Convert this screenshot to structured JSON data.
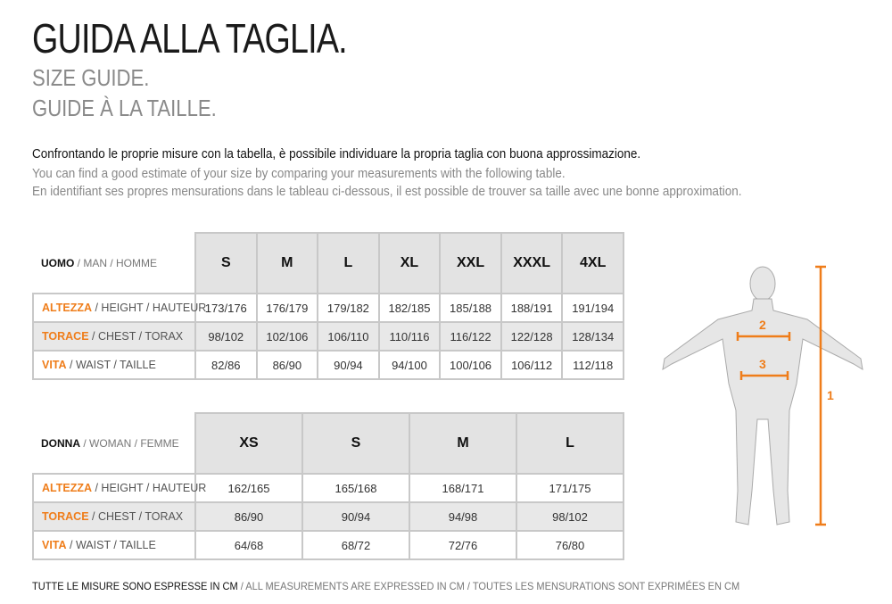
{
  "title": "GUIDA ALLA TAGLIA.",
  "subtitle_en": "SIZE GUIDE.",
  "subtitle_fr": "GUIDE À LA TAILLE.",
  "intro": {
    "it": "Confrontando le proprie misure con la tabella, è possibile individuare la propria taglia con buona approssimazione.",
    "en": "You can find a good estimate of your size by comparing your measurements with the following table.",
    "fr": "En identifiant ses propres mensurations dans le tableau ci-dessous, il est possible de trouver sa taille avec une bonne approximation."
  },
  "men": {
    "label_it": "UOMO",
    "label_rest": " / MAN / HOMME",
    "sizes": [
      "S",
      "M",
      "L",
      "XL",
      "XXL",
      "XXXL",
      "4XL"
    ],
    "rows": [
      {
        "it": "ALTEZZA",
        "rest": " / HEIGHT / HAUTEUR",
        "values": [
          "173/176",
          "176/179",
          "179/182",
          "182/185",
          "185/188",
          "188/191",
          "191/194"
        ]
      },
      {
        "it": "TORACE",
        "rest": " / CHEST / TORAX",
        "values": [
          "98/102",
          "102/106",
          "106/110",
          "110/116",
          "116/122",
          "122/128",
          "128/134"
        ]
      },
      {
        "it": "VITA",
        "rest": " / WAIST / TAILLE",
        "values": [
          "82/86",
          "86/90",
          "90/94",
          "94/100",
          "100/106",
          "106/112",
          "112/118"
        ]
      }
    ]
  },
  "women": {
    "label_it": "DONNA",
    "label_rest": " / WOMAN / FEMME",
    "sizes": [
      "XS",
      "S",
      "M",
      "L"
    ],
    "rows": [
      {
        "it": "ALTEZZA",
        "rest": " / HEIGHT / HAUTEUR",
        "values": [
          "162/165",
          "165/168",
          "168/171",
          "171/175"
        ]
      },
      {
        "it": "TORACE",
        "rest": " / CHEST / TORAX",
        "values": [
          "86/90",
          "90/94",
          "94/98",
          "98/102"
        ]
      },
      {
        "it": "VITA",
        "rest": " / WAIST / TAILLE",
        "values": [
          "64/68",
          "68/72",
          "72/76",
          "76/80"
        ]
      }
    ]
  },
  "figure": {
    "markers": [
      "1",
      "2",
      "3"
    ],
    "accent": "#ef7d1a"
  },
  "footer": {
    "it": "TUTTE LE MISURE SONO ESPRESSE IN CM",
    "rest": " / ALL MEASUREMENTS ARE EXPRESSED IN CM / TOUTES LES MENSURATIONS SONT EXPRIMÉES EN CM"
  }
}
